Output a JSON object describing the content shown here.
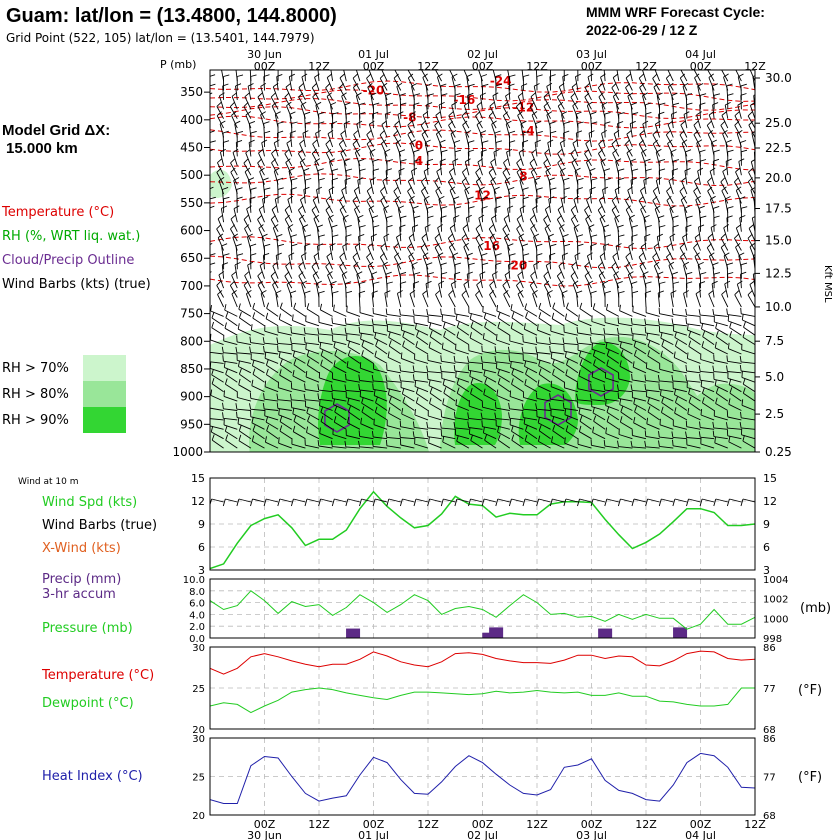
{
  "header": {
    "title": "Guam:  lat/lon = (13.4800, 144.8000)",
    "grid_point": "Grid Point (522, 105) lat/lon = (13.5401, 144.7979)",
    "model_title": "MMM WRF Forecast Cycle:",
    "cycle": "2022-06-29 / 12  Z",
    "model_grid_label": "Model Grid ΔX:",
    "model_grid_value": "15.000 km"
  },
  "colors": {
    "temperature": "#dd0000",
    "rh": "#00aa00",
    "cloud": "#6a2c91",
    "wind_speed": "#22cc22",
    "crosswind": "#e06020",
    "precip": "#5c2a86",
    "pressure": "#22cc22",
    "dewpoint": "#22cc22",
    "heat_index": "#2020aa",
    "rh70": "#ccf5cc",
    "rh80": "#99e699",
    "rh90": "#33d633"
  },
  "time_axis": {
    "ticks": [
      "00Z",
      "12Z",
      "00Z",
      "12Z",
      "00Z",
      "12Z",
      "00Z",
      "12Z",
      "00Z",
      "12Z"
    ],
    "tick_hours": [
      12,
      24,
      36,
      48,
      60,
      72,
      84,
      96,
      108,
      120
    ],
    "day_labels": [
      "30 Jun",
      "01 Jul",
      "02 Jul",
      "03 Jul",
      "04 Jul"
    ],
    "day_hours": [
      12,
      36,
      60,
      84,
      108
    ],
    "range_hours": [
      0,
      120
    ]
  },
  "panels": {
    "sounding": {
      "p_label": "P (mb)",
      "pressure_ticks": [
        "350",
        "400",
        "450",
        "500",
        "550",
        "600",
        "650",
        "700",
        "750",
        "800",
        "850",
        "900",
        "950",
        "1000"
      ],
      "height_label": "Kft MSL",
      "height_ticks": [
        {
          "label": "30.0",
          "p": 305
        },
        {
          "label": "25.0",
          "p": 367
        },
        {
          "label": "22.5",
          "p": 401
        },
        {
          "label": "20.0",
          "p": 442
        },
        {
          "label": "17.5",
          "p": 484
        },
        {
          "label": "15.0",
          "p": 528
        },
        {
          "label": "12.5",
          "p": 573
        },
        {
          "label": "10.0",
          "p": 619
        },
        {
          "label": "7.5",
          "p": 666
        },
        {
          "label": "5.0",
          "p": 715
        },
        {
          "label": "2.5",
          "p": 766
        },
        {
          "label": "0.25",
          "p": 818
        }
      ],
      "legend": {
        "temperature": "Temperature (°C)",
        "rh": "RH (%, WRT liq. wat.)",
        "cloud": "Cloud/Precip Outline",
        "wind": "Wind Barbs (kts) (true)"
      },
      "rh_legend": [
        "RH > 70%",
        "RH > 80%",
        "RH > 90%"
      ],
      "isotherm_labels": [
        {
          "text": "-24",
          "hour": 64,
          "p": 330
        },
        {
          "text": "-20",
          "hour": 36,
          "p": 347
        },
        {
          "text": "-16",
          "hour": 56,
          "p": 364
        },
        {
          "text": "-12",
          "hour": 69,
          "p": 378
        },
        {
          "text": "-8",
          "hour": 44,
          "p": 396
        },
        {
          "text": "-4",
          "hour": 70,
          "p": 420
        },
        {
          "text": "0",
          "hour": 46,
          "p": 446
        },
        {
          "text": "4",
          "hour": 46,
          "p": 474
        },
        {
          "text": "8",
          "hour": 69,
          "p": 502
        },
        {
          "text": "12",
          "hour": 60,
          "p": 537
        },
        {
          "text": "16",
          "hour": 62,
          "p": 628
        },
        {
          "text": "20",
          "hour": 68,
          "p": 663
        }
      ]
    },
    "surface_wind": {
      "title": "Wind at 10 m",
      "legend_speed": "Wind Spd (kts)",
      "legend_barbs": "Wind Barbs (true)",
      "legend_xwind": "X-Wind (kts)",
      "yticks": [
        "15",
        "12",
        "9",
        "6",
        "3"
      ]
    },
    "precip": {
      "legend_precip": "Precip (mm)",
      "legend_accum": "3-hr accum",
      "legend_pressure": "Pressure (mb)",
      "left_ticks": [
        "10.0",
        "8.0",
        "6.0",
        "4.0",
        "2.0",
        "0.0"
      ],
      "right_ticks": [
        "1004",
        "1002",
        "1000",
        "998"
      ],
      "right_unit": "(mb)"
    },
    "temperature": {
      "legend_temp": "Temperature (°C)",
      "legend_dew": "Dewpoint (°C)",
      "left_ticks": [
        "30",
        "25",
        "20"
      ],
      "right_ticks": [
        "86",
        "77",
        "68"
      ],
      "right_unit": "(°F)"
    },
    "heat_index": {
      "legend": "Heat Index (°C)",
      "left_ticks": [
        "30",
        "25",
        "20"
      ],
      "right_ticks": [
        "86",
        "77",
        "68"
      ],
      "right_unit": "(°F)"
    }
  },
  "chart_data": [
    {
      "type": "line",
      "name": "surface-wind-speed",
      "xlabel": "",
      "ylabel": "",
      "x": [
        0,
        3,
        6,
        9,
        12,
        15,
        18,
        21,
        24,
        27,
        30,
        33,
        36,
        39,
        42,
        45,
        48,
        51,
        54,
        57,
        60,
        63,
        66,
        69,
        72,
        75,
        78,
        81,
        84,
        87,
        90,
        93,
        96,
        99,
        102,
        105,
        108,
        111,
        114,
        117,
        120
      ],
      "values": [
        3.2,
        3.8,
        6.5,
        8.8,
        9.7,
        10.2,
        8.5,
        6.2,
        7.0,
        7.0,
        8.2,
        11.0,
        13.2,
        11.3,
        9.8,
        8.5,
        8.8,
        10.3,
        12.6,
        11.6,
        11.4,
        9.9,
        10.4,
        10.2,
        10.2,
        11.6,
        11.9,
        11.9,
        11.8,
        9.6,
        7.6,
        5.8,
        6.6,
        7.7,
        9.3,
        11.0,
        11.0,
        10.5,
        8.8,
        8.8,
        9.0
      ],
      "ylim": [
        3,
        15
      ]
    },
    {
      "type": "line",
      "name": "surface-pressure",
      "x": [
        0,
        3,
        6,
        9,
        12,
        15,
        18,
        21,
        24,
        27,
        30,
        33,
        36,
        39,
        42,
        45,
        48,
        51,
        54,
        57,
        60,
        63,
        66,
        69,
        72,
        75,
        78,
        81,
        84,
        87,
        90,
        93,
        96,
        99,
        102,
        105,
        108,
        111,
        114,
        117,
        120
      ],
      "values": [
        1001.8,
        1000.9,
        1001.3,
        1002.8,
        1001.8,
        1000.5,
        1001.7,
        1001.2,
        1001.4,
        1000.3,
        1001.1,
        1002.4,
        1001.6,
        1000.6,
        1001.4,
        1002.4,
        1001.8,
        1000.4,
        1001.0,
        1001.2,
        1000.9,
        1000.1,
        1001.3,
        1002.4,
        1001.6,
        1000.4,
        1000.5,
        1000.1,
        1000.2,
        999.7,
        1000.4,
        999.9,
        1000.4,
        1000.0,
        1000.0,
        998.9,
        999.4,
        1000.9,
        999.4,
        999.4,
        1000.1
      ],
      "ylim": [
        998,
        1004
      ]
    },
    {
      "type": "bar",
      "name": "precip-3hr",
      "x": [
        31.5,
        61.5,
        63,
        87,
        103.5
      ],
      "values": [
        1.6,
        0.9,
        1.8,
        1.6,
        1.8
      ],
      "ylim": [
        0,
        10
      ]
    },
    {
      "type": "line",
      "name": "temperature-2m",
      "x": [
        0,
        3,
        6,
        9,
        12,
        15,
        18,
        21,
        24,
        27,
        30,
        33,
        36,
        39,
        42,
        45,
        48,
        51,
        54,
        57,
        60,
        63,
        66,
        69,
        72,
        75,
        78,
        81,
        84,
        87,
        90,
        93,
        96,
        99,
        102,
        105,
        108,
        111,
        114,
        117,
        120
      ],
      "values": [
        27.4,
        26.7,
        27.4,
        28.8,
        29.2,
        28.8,
        28.3,
        27.9,
        27.6,
        27.9,
        27.9,
        28.5,
        29.4,
        28.9,
        28.2,
        27.8,
        27.6,
        28.2,
        29.2,
        29.3,
        29.1,
        28.6,
        28.3,
        28.1,
        28.1,
        28.0,
        28.4,
        29.0,
        29.0,
        28.6,
        28.9,
        28.8,
        27.8,
        27.7,
        28.3,
        29.2,
        29.5,
        29.4,
        28.6,
        28.4,
        28.5
      ],
      "ylim": [
        20,
        30
      ]
    },
    {
      "type": "line",
      "name": "dewpoint-2m",
      "x": [
        0,
        3,
        6,
        9,
        12,
        15,
        18,
        21,
        24,
        27,
        30,
        33,
        36,
        39,
        42,
        45,
        48,
        51,
        54,
        57,
        60,
        63,
        66,
        69,
        72,
        75,
        78,
        81,
        84,
        87,
        90,
        93,
        96,
        99,
        102,
        105,
        108,
        111,
        114,
        117,
        120
      ],
      "values": [
        22.8,
        23.2,
        23.0,
        22.0,
        22.8,
        23.5,
        24.5,
        24.8,
        25.0,
        24.8,
        24.4,
        24.1,
        23.8,
        23.6,
        24.1,
        24.5,
        24.5,
        24.4,
        24.3,
        24.2,
        24.3,
        24.6,
        24.4,
        24.5,
        24.7,
        24.5,
        24.4,
        24.5,
        24.1,
        24.1,
        24.4,
        24.0,
        24.0,
        23.4,
        23.3,
        23.0,
        22.8,
        22.8,
        23.0,
        25.0,
        25.0
      ],
      "ylim": [
        20,
        30
      ]
    },
    {
      "type": "line",
      "name": "heat-index",
      "x": [
        0,
        3,
        6,
        9,
        12,
        15,
        18,
        21,
        24,
        27,
        30,
        33,
        36,
        39,
        42,
        45,
        48,
        51,
        54,
        57,
        60,
        63,
        66,
        69,
        72,
        75,
        78,
        81,
        84,
        87,
        90,
        93,
        96,
        99,
        102,
        105,
        108,
        111,
        114,
        117,
        120
      ],
      "values": [
        22.0,
        21.5,
        21.5,
        26.4,
        27.6,
        27.4,
        25.0,
        22.8,
        21.8,
        22.2,
        22.5,
        25.2,
        27.5,
        26.8,
        24.6,
        22.8,
        22.7,
        24.3,
        26.3,
        27.7,
        26.8,
        25.3,
        23.9,
        22.8,
        22.6,
        23.3,
        26.2,
        26.5,
        27.3,
        24.5,
        23.2,
        22.8,
        22.0,
        21.8,
        23.9,
        26.8,
        28.0,
        27.7,
        26.2,
        23.6,
        23.5
      ],
      "ylim": [
        20,
        30
      ]
    }
  ]
}
